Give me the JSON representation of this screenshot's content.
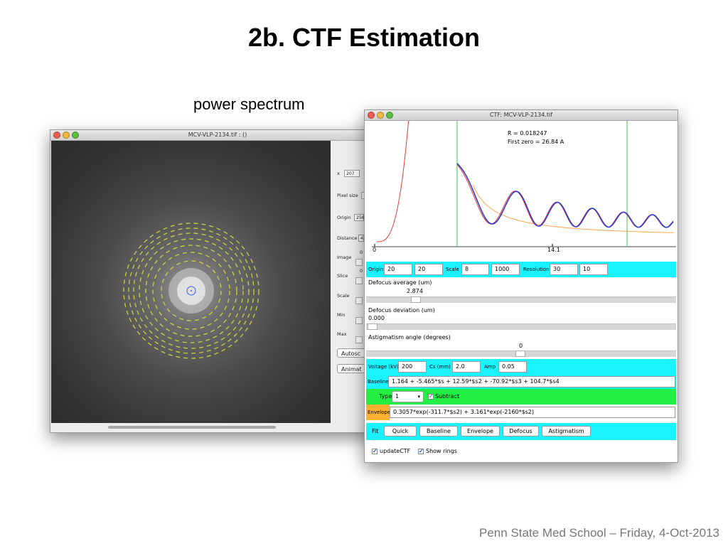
{
  "slide": {
    "title": "2b. CTF Estimation",
    "caption": "power spectrum",
    "footer": "Penn State Med School – Friday, 4-Oct-2013"
  },
  "image_window": {
    "title": "MCV-VLP-2134.tif : ()",
    "panel": {
      "x_label": "x",
      "x_value": "207",
      "pixel_size_label": "Pixel size",
      "origin_label": "Origin",
      "origin_value": "256",
      "distance_label": "Distance",
      "distance_value": "4.",
      "image_label": "Image",
      "image_value": "0",
      "slice_label": "Slice",
      "slice_value": "0",
      "scale_label": "Scale",
      "min_label": "Min",
      "max_label": "Max",
      "autoscale_button": "Autosc",
      "animate_button": "Animat"
    },
    "colors": {
      "rings": "#d8dc3c",
      "center_marker": "#3b5bff"
    }
  },
  "ctf_window": {
    "title": "CTF: MCV-VLP-2134.tif",
    "plot": {
      "r_label": "R  =   0.018247",
      "first_zero_label": "First zero =      26.84 A",
      "x_tick_0": "0",
      "x_tick_1": "14.1",
      "colors": {
        "experimental": "#2b3bd6",
        "fitted": "#e23a3a",
        "envelope": "#ffa64d",
        "markers": "#3cc73c"
      }
    },
    "row1": {
      "origin_label": "Origin",
      "origin_a": "20",
      "origin_b": "20",
      "scale_label": "Scale",
      "scale_a": "8",
      "scale_b": "1000",
      "resolution_label": "Resolution",
      "resolution_a": "30",
      "resolution_b": "10"
    },
    "defocus_avg": {
      "label": "Defocus average (um)",
      "value": "2.874"
    },
    "defocus_dev": {
      "label": "Defocus deviation (um)",
      "value": "0.000"
    },
    "astig": {
      "label": "Astigmatism angle (degrees)",
      "value": "0"
    },
    "voltage_row": {
      "voltage_label": "Voltage (kV)",
      "voltage": "200",
      "cs_label": "Cs (mm)",
      "cs": "2.0",
      "amp_label": "Amp",
      "amp": "0.05"
    },
    "baseline": {
      "label": "Baseline",
      "formula": "1.164 + -5.465*$s + 12.59*$s2 + -70.92*$s3 + 104.7*$s4"
    },
    "type_row": {
      "type_label": "Type",
      "type_value": "1",
      "subtract_label": "Subtract"
    },
    "envelope": {
      "label": "Envelope",
      "formula": "0.3057*exp(-311.7*$s2) + 3.161*exp(-2160*$s2)"
    },
    "fit_row": {
      "label": "Fit",
      "buttons": [
        "Quick",
        "Baseline",
        "Envelope",
        "Defocus",
        "Astigmatism"
      ]
    },
    "bottom": {
      "update_label": "updateCTF",
      "rings_label": "Show rings"
    },
    "colors": {
      "cyan": "#19f2ff",
      "green": "#22ee44",
      "orange": "#ffb030"
    }
  }
}
